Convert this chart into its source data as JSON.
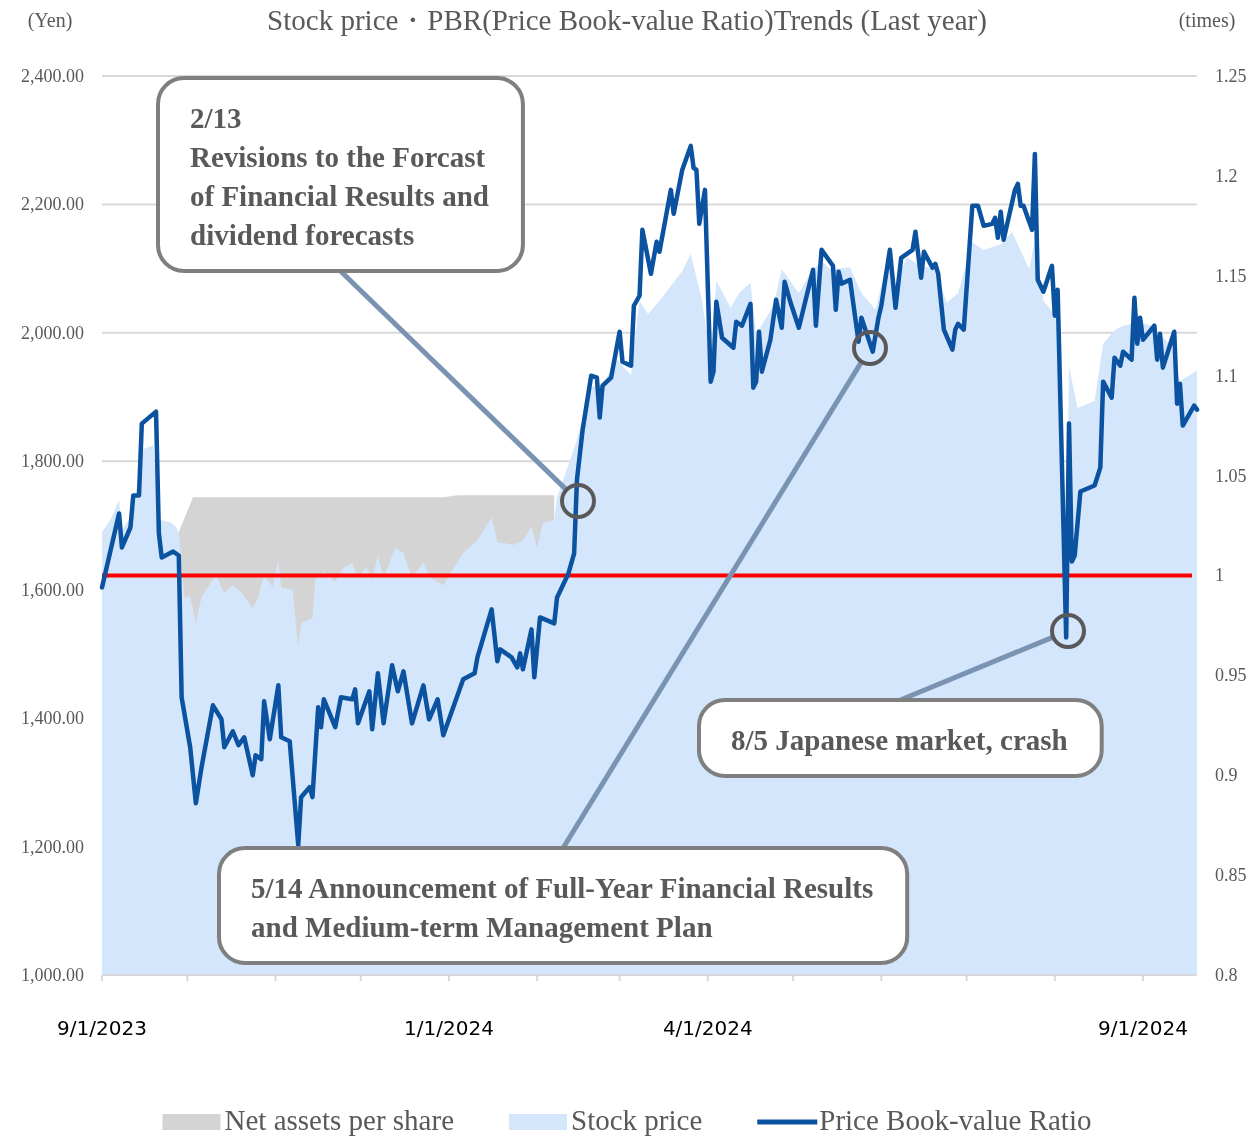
{
  "chart_data": {
    "type": "area",
    "title": "Stock price・PBR(Price Book-value Ratio)Trends (Last year)",
    "ylabel": "(Yen)",
    "y2label": "(times)",
    "xlim": [
      "2023-09-01",
      "2024-09-20"
    ],
    "xticks": [
      {
        "value": "2023-09-01",
        "label": "9/1/2023"
      },
      {
        "value": "2023-10-01",
        "label": null
      },
      {
        "value": "2023-11-01",
        "label": null
      },
      {
        "value": "2023-12-01",
        "label": null
      },
      {
        "value": "2024-01-01",
        "label": "1/1/2024"
      },
      {
        "value": "2024-02-01",
        "label": null
      },
      {
        "value": "2024-03-01",
        "label": null
      },
      {
        "value": "2024-04-01",
        "label": "4/1/2024"
      },
      {
        "value": "2024-05-01",
        "label": null
      },
      {
        "value": "2024-06-01",
        "label": null
      },
      {
        "value": "2024-07-01",
        "label": null
      },
      {
        "value": "2024-08-01",
        "label": null
      },
      {
        "value": "2024-09-01",
        "label": "9/1/2024"
      }
    ],
    "ylim": [
      1000,
      2400
    ],
    "yticks": [
      {
        "value": 1000,
        "label": "1,000.00"
      },
      {
        "value": 1200,
        "label": "1,200.00"
      },
      {
        "value": 1400,
        "label": "1,400.00"
      },
      {
        "value": 1600,
        "label": "1,600.00"
      },
      {
        "value": 1800,
        "label": "1,800.00"
      },
      {
        "value": 2000,
        "label": "2,000.00"
      },
      {
        "value": 2200,
        "label": "2,200.00"
      },
      {
        "value": 2400,
        "label": "2,400.00"
      }
    ],
    "y2lim": [
      0.8,
      1.25
    ],
    "y2ticks": [
      0.8,
      0.85,
      0.9,
      0.95,
      1,
      1.05,
      1.1,
      1.15,
      1.2,
      1.25
    ],
    "grid": "y",
    "legend": "bottom",
    "ref_lines": [
      {
        "axis": "y2",
        "value": 1,
        "color": "#ff0000"
      }
    ],
    "series": [
      {
        "name": "Net assets per share",
        "color": "#d4d4d4",
        "x": [
          "2023-09-28",
          "2023-10-03",
          "2023-12-30",
          "2024-01-04",
          "2024-02-07"
        ],
        "values": [
          1690,
          1744,
          1744,
          1747,
          1747
        ]
      },
      {
        "name": "Stock price",
        "color": "#d4e6fb",
        "x": [
          "2023-09-01",
          "2023-09-04",
          "2023-09-07",
          "2023-09-08",
          "2023-09-12",
          "2023-09-15",
          "2023-09-19",
          "2023-09-21",
          "2023-09-25",
          "2023-09-27",
          "2023-09-28",
          "2023-09-30",
          "2023-10-02",
          "2023-10-04",
          "2023-10-06",
          "2023-10-11",
          "2023-10-14",
          "2023-10-17",
          "2023-10-20",
          "2023-10-24",
          "2023-10-26",
          "2023-10-28",
          "2023-10-31",
          "2023-11-02",
          "2023-11-03",
          "2023-11-07",
          "2023-11-09",
          "2023-11-10",
          "2023-11-14",
          "2023-11-15",
          "2023-11-18",
          "2023-11-22",
          "2023-11-25",
          "2023-11-28",
          "2023-11-30",
          "2023-12-03",
          "2023-12-05",
          "2023-12-07",
          "2023-12-09",
          "2023-12-13",
          "2023-12-16",
          "2023-12-19",
          "2023-12-23",
          "2023-12-25",
          "2023-12-30",
          "2024-01-06",
          "2024-01-11",
          "2024-01-16",
          "2024-01-18",
          "2024-01-24",
          "2024-01-27",
          "2024-01-30",
          "2024-02-01",
          "2024-02-03",
          "2024-02-07",
          "2024-02-08",
          "2024-02-15",
          "2024-02-20",
          "2024-02-24",
          "2024-02-29",
          "2024-03-05",
          "2024-03-08",
          "2024-03-11",
          "2024-03-15",
          "2024-03-23",
          "2024-03-26",
          "2024-03-30",
          "2024-04-02",
          "2024-04-04",
          "2024-04-09",
          "2024-04-12",
          "2024-04-16",
          "2024-04-18",
          "2024-04-24",
          "2024-04-27",
          "2024-05-03",
          "2024-05-08",
          "2024-05-11",
          "2024-05-14",
          "2024-05-21",
          "2024-05-25",
          "2024-05-30",
          "2024-06-03",
          "2024-06-06",
          "2024-06-10",
          "2024-06-14",
          "2024-06-20",
          "2024-06-24",
          "2024-06-28",
          "2024-07-03",
          "2024-07-07",
          "2024-07-13",
          "2024-07-17",
          "2024-07-23",
          "2024-07-25",
          "2024-07-28",
          "2024-08-02",
          "2024-08-05",
          "2024-08-06",
          "2024-08-09",
          "2024-08-15",
          "2024-08-18",
          "2024-08-22",
          "2024-08-25",
          "2024-08-31",
          "2024-09-04",
          "2024-09-11",
          "2024-09-14",
          "2024-09-20"
        ],
        "values": [
          1690,
          1709,
          1740,
          1693,
          1719,
          1818,
          1825,
          1709,
          1705,
          1698,
          1688,
          1587,
          1589,
          1548,
          1589,
          1623,
          1595,
          1607,
          1596,
          1571,
          1589,
          1623,
          1604,
          1646,
          1603,
          1600,
          1511,
          1548,
          1556,
          1615,
          1628,
          1612,
          1634,
          1642,
          1618,
          1635,
          1615,
          1654,
          1618,
          1665,
          1657,
          1618,
          1643,
          1620,
          1607,
          1657,
          1677,
          1713,
          1674,
          1670,
          1677,
          1698,
          1665,
          1704,
          1709,
          1744,
          1833,
          1916,
          1919,
          1959,
          1934,
          2050,
          2029,
          2050,
          2096,
          2123,
          2050,
          1959,
          2081,
          2039,
          2062,
          2078,
          1998,
          2042,
          2099,
          2062,
          2099,
          2112,
          2099,
          2102,
          2062,
          2036,
          2112,
          2075,
          2118,
          2106,
          2099,
          2047,
          2062,
          2141,
          2129,
          2138,
          2157,
          2099,
          2145,
          2050,
          2023,
          1655,
          1948,
          1883,
          1894,
          1983,
          2004,
          2011,
          2017,
          2011,
          1980,
          1925,
          1941
        ]
      },
      {
        "name": "Price Book-value Ratio",
        "type": "line",
        "axis": "y2",
        "color": "#0b52a0",
        "x": [
          "2023-09-01",
          "2023-09-07",
          "2023-09-08",
          "2023-09-11",
          "2023-09-12",
          "2023-09-14",
          "2023-09-15",
          "2023-09-20",
          "2023-09-21",
          "2023-09-22",
          "2023-09-26",
          "2023-09-28",
          "2023-09-29",
          "2023-10-02",
          "2023-10-04",
          "2023-10-06",
          "2023-10-10",
          "2023-10-13",
          "2023-10-14",
          "2023-10-17",
          "2023-10-19",
          "2023-10-21",
          "2023-10-24",
          "2023-10-25",
          "2023-10-27",
          "2023-10-28",
          "2023-10-30",
          "2023-11-02",
          "2023-11-03",
          "2023-11-06",
          "2023-11-09",
          "2023-11-10",
          "2023-11-13",
          "2023-11-14",
          "2023-11-16",
          "2023-11-17",
          "2023-11-18",
          "2023-11-22",
          "2023-11-24",
          "2023-11-28",
          "2023-11-29",
          "2023-11-30",
          "2023-12-04",
          "2023-12-05",
          "2023-12-07",
          "2023-12-09",
          "2023-12-12",
          "2023-12-14",
          "2023-12-16",
          "2023-12-19",
          "2023-12-23",
          "2023-12-25",
          "2023-12-28",
          "2023-12-30",
          "2024-01-06",
          "2024-01-10",
          "2024-01-11",
          "2024-01-16",
          "2024-01-18",
          "2024-01-19",
          "2024-01-23",
          "2024-01-25",
          "2024-01-26",
          "2024-01-27",
          "2024-01-30",
          "2024-01-31",
          "2024-02-02",
          "2024-02-07",
          "2024-02-08",
          "2024-02-12",
          "2024-02-14",
          "2024-02-15",
          "2024-02-17",
          "2024-02-20",
          "2024-02-22",
          "2024-02-23",
          "2024-02-24",
          "2024-02-27",
          "2024-03-01",
          "2024-03-02",
          "2024-03-05",
          "2024-03-06",
          "2024-03-08",
          "2024-03-09",
          "2024-03-12",
          "2024-03-14",
          "2024-03-15",
          "2024-03-19",
          "2024-03-20",
          "2024-03-23",
          "2024-03-26",
          "2024-03-27",
          "2024-03-28",
          "2024-03-29",
          "2024-03-31",
          "2024-04-02",
          "2024-04-03",
          "2024-04-04",
          "2024-04-06",
          "2024-04-10",
          "2024-04-11",
          "2024-04-13",
          "2024-04-16",
          "2024-04-17",
          "2024-04-18",
          "2024-04-19",
          "2024-04-20",
          "2024-04-23",
          "2024-04-25",
          "2024-04-27",
          "2024-04-28",
          "2024-04-30",
          "2024-05-03",
          "2024-05-08",
          "2024-05-09",
          "2024-05-11",
          "2024-05-15",
          "2024-05-16",
          "2024-05-17",
          "2024-05-18",
          "2024-05-21",
          "2024-05-24",
          "2024-05-25",
          "2024-05-29",
          "2024-05-31",
          "2024-06-01",
          "2024-06-04",
          "2024-06-06",
          "2024-06-08",
          "2024-06-12",
          "2024-06-13",
          "2024-06-15",
          "2024-06-16",
          "2024-06-19",
          "2024-06-20",
          "2024-06-21",
          "2024-06-23",
          "2024-06-26",
          "2024-06-27",
          "2024-06-28",
          "2024-06-30",
          "2024-07-03",
          "2024-07-05",
          "2024-07-07",
          "2024-07-10",
          "2024-07-11",
          "2024-07-12",
          "2024-07-13",
          "2024-07-14",
          "2024-07-18",
          "2024-07-19",
          "2024-07-20",
          "2024-07-21",
          "2024-07-24",
          "2024-07-25",
          "2024-07-26",
          "2024-07-28",
          "2024-07-31",
          "2024-08-01",
          "2024-08-02",
          "2024-08-05",
          "2024-08-06",
          "2024-08-07",
          "2024-08-08",
          "2024-08-10",
          "2024-08-15",
          "2024-08-17",
          "2024-08-18",
          "2024-08-21",
          "2024-08-22",
          "2024-08-24",
          "2024-08-25",
          "2024-08-28",
          "2024-08-29",
          "2024-08-30",
          "2024-08-31",
          "2024-09-01",
          "2024-09-05",
          "2024-09-06",
          "2024-09-07",
          "2024-09-08",
          "2024-09-12",
          "2024-09-13",
          "2024-09-14",
          "2024-09-15",
          "2024-09-19",
          "2024-09-20"
        ],
        "values": [
          0.994,
          1.031,
          1.014,
          1.024,
          1.04,
          1.04,
          1.076,
          1.082,
          1.021,
          1.009,
          1.012,
          1.01,
          0.939,
          0.914,
          0.886,
          0.904,
          0.935,
          0.928,
          0.914,
          0.922,
          0.915,
          0.919,
          0.9,
          0.91,
          0.908,
          0.937,
          0.918,
          0.945,
          0.919,
          0.917,
          0.865,
          0.889,
          0.894,
          0.889,
          0.934,
          0.924,
          0.938,
          0.924,
          0.939,
          0.938,
          0.943,
          0.926,
          0.942,
          0.923,
          0.951,
          0.926,
          0.955,
          0.942,
          0.952,
          0.926,
          0.945,
          0.928,
          0.938,
          0.92,
          0.948,
          0.951,
          0.959,
          0.983,
          0.957,
          0.963,
          0.959,
          0.954,
          0.961,
          0.953,
          0.973,
          0.949,
          0.979,
          0.976,
          0.989,
          1.001,
          1.011,
          1.048,
          1.073,
          1.1,
          1.099,
          1.079,
          1.095,
          1.099,
          1.122,
          1.107,
          1.105,
          1.135,
          1.14,
          1.173,
          1.151,
          1.167,
          1.162,
          1.193,
          1.181,
          1.203,
          1.215,
          1.204,
          1.203,
          1.176,
          1.193,
          1.097,
          1.102,
          1.137,
          1.119,
          1.114,
          1.127,
          1.125,
          1.136,
          1.094,
          1.097,
          1.122,
          1.102,
          1.118,
          1.138,
          1.124,
          1.147,
          1.137,
          1.124,
          1.153,
          1.125,
          1.163,
          1.155,
          1.133,
          1.152,
          1.146,
          1.148,
          1.117,
          1.129,
          1.112,
          1.129,
          1.135,
          1.163,
          1.134,
          1.159,
          1.163,
          1.172,
          1.149,
          1.162,
          1.154,
          1.156,
          1.151,
          1.123,
          1.113,
          1.123,
          1.126,
          1.123,
          1.185,
          1.185,
          1.175,
          1.176,
          1.179,
          1.169,
          1.182,
          1.168,
          1.193,
          1.196,
          1.185,
          1.185,
          1.173,
          1.211,
          1.148,
          1.142,
          1.155,
          1.13,
          1.143,
          0.969,
          1.076,
          1.007,
          1.01,
          1.042,
          1.045,
          1.054,
          1.097,
          1.089,
          1.109,
          1.105,
          1.112,
          1.108,
          1.139,
          1.116,
          1.129,
          1.118,
          1.125,
          1.108,
          1.121,
          1.104,
          1.122,
          1.086,
          1.096,
          1.075,
          1.085,
          1.083
        ]
      }
    ],
    "annotations": [
      "2/13\nRevisions to the Forcast\nof Financial Results and\ndividend forecasts",
      "8/5 Japanese market, crash",
      "5/14 Announcement of Full-Year Financial Results\nand Medium-term Management Plan"
    ]
  }
}
